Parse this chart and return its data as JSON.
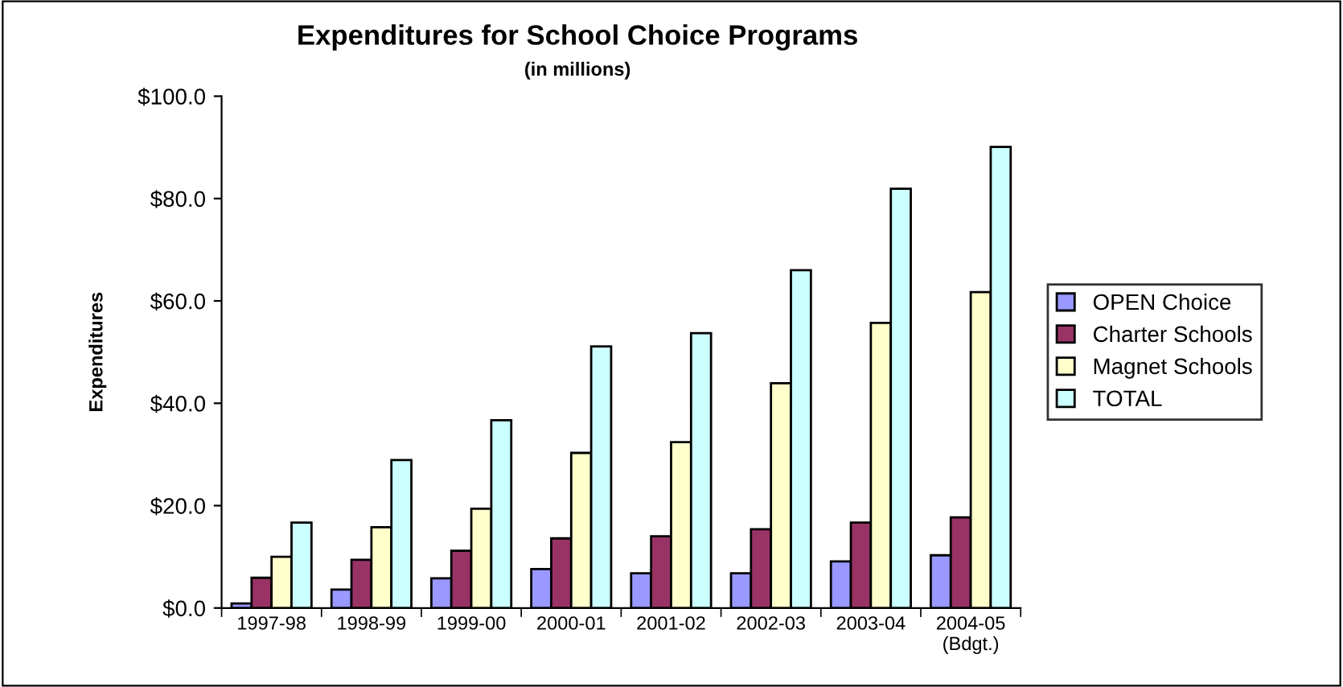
{
  "chart_data": {
    "type": "bar",
    "title": "Expenditures for School Choice Programs",
    "subtitle": "(in millions)",
    "ylabel": "Expenditures",
    "categories": [
      "1997-98",
      "1998-99",
      "1999-00",
      "2000-01",
      "2001-02",
      "2002-03",
      "2003-04",
      "2004-05\n(Bdgt.)"
    ],
    "series": [
      {
        "name": "OPEN Choice",
        "color": "#9999ff",
        "values": [
          0.9,
          3.6,
          5.8,
          7.6,
          6.8,
          6.8,
          9.1,
          10.3
        ]
      },
      {
        "name": "Charter Schools",
        "color": "#993366",
        "values": [
          5.9,
          9.4,
          11.2,
          13.6,
          14.0,
          15.4,
          16.7,
          17.7
        ]
      },
      {
        "name": "Magnet Schools",
        "color": "#ffffcc",
        "values": [
          10.0,
          15.8,
          19.4,
          30.3,
          32.4,
          43.9,
          55.7,
          61.7
        ]
      },
      {
        "name": "TOTAL",
        "color": "#ccffff",
        "values": [
          16.7,
          28.9,
          36.7,
          51.1,
          53.7,
          66.0,
          81.9,
          90.1
        ]
      }
    ],
    "ylim": [
      0,
      100
    ],
    "yticks": [
      {
        "value": 0,
        "label": "$0.0"
      },
      {
        "value": 20,
        "label": "$20.0"
      },
      {
        "value": 40,
        "label": "$40.0"
      },
      {
        "value": 60,
        "label": "$60.0"
      },
      {
        "value": 80,
        "label": "$80.0"
      },
      {
        "value": 100,
        "label": "$100.0"
      }
    ],
    "grid": false,
    "legend": "right"
  }
}
